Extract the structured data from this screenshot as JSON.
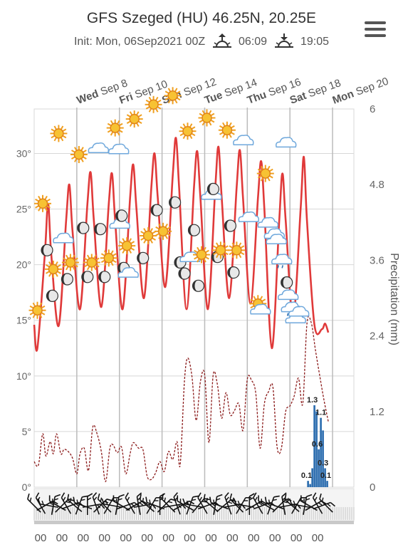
{
  "header": {
    "title": "GFS Szeged (HU) 46.25N, 20.25E",
    "init": "Init: Mon, 06Sep2021 00Z",
    "sunrise": "06:09",
    "sunset": "19:05"
  },
  "icons": {
    "menu": "hamburger-menu-icon",
    "sunrise": "sunrise-icon",
    "sunset": "sunset-icon"
  },
  "colors": {
    "temperature": "#e03a3a",
    "dewpoint": "#8b1a1a",
    "precip": "#2f6fb0",
    "grid": "#d8d8d8"
  },
  "chart_data": {
    "type": "line",
    "x_unit": "days since Mon Sep 6 00Z",
    "xlim": [
      0,
      15
    ],
    "ylim_temp": [
      0,
      34
    ],
    "ylim_precip": [
      0,
      6
    ],
    "date_labels": [
      {
        "day": "Wed",
        "date": "Sep 8",
        "t": 2
      },
      {
        "day": "Fri",
        "date": "Sep 10",
        "t": 4
      },
      {
        "day": "Sun",
        "date": "Sep 12",
        "t": 6
      },
      {
        "day": "Tue",
        "date": "Sep 14",
        "t": 8
      },
      {
        "day": "Thu",
        "date": "Sep 16",
        "t": 10
      },
      {
        "day": "Sat",
        "date": "Sep 18",
        "t": 12
      },
      {
        "day": "Mon",
        "date": "Sep 20",
        "t": 14
      }
    ],
    "temp_ticks": [
      {
        "v": 0,
        "label": "0°"
      },
      {
        "v": 5,
        "label": "5°"
      },
      {
        "v": 10,
        "label": "10°"
      },
      {
        "v": 15,
        "label": "15°"
      },
      {
        "v": 20,
        "label": "20°"
      },
      {
        "v": 25,
        "label": "25°"
      },
      {
        "v": 30,
        "label": "30°"
      }
    ],
    "precip_ticks": [
      {
        "v": 0,
        "label": "0"
      },
      {
        "v": 1.2,
        "label": "1.2"
      },
      {
        "v": 2.4,
        "label": "2.4"
      },
      {
        "v": 3.6,
        "label": "3.6"
      },
      {
        "v": 4.8,
        "label": "4.8"
      },
      {
        "v": 6,
        "label": "6"
      }
    ],
    "precip_axis_label": "Precipitation (mm)",
    "temperature": [
      [
        0,
        14.6
      ],
      [
        0.15,
        12.5
      ],
      [
        0.5,
        21
      ],
      [
        0.65,
        25.5
      ],
      [
        0.8,
        21
      ],
      [
        1.15,
        14.5
      ],
      [
        1.5,
        24
      ],
      [
        1.65,
        27.2
      ],
      [
        1.8,
        23
      ],
      [
        2.15,
        16
      ],
      [
        2.5,
        25.5
      ],
      [
        2.65,
        28.3
      ],
      [
        2.8,
        24
      ],
      [
        3.15,
        16.2
      ],
      [
        3.5,
        25.5
      ],
      [
        3.65,
        28.2
      ],
      [
        3.8,
        24
      ],
      [
        4.15,
        16
      ],
      [
        4.5,
        26
      ],
      [
        4.65,
        29
      ],
      [
        4.8,
        25
      ],
      [
        5.15,
        17
      ],
      [
        5.5,
        27
      ],
      [
        5.65,
        30
      ],
      [
        5.8,
        26
      ],
      [
        6.15,
        18
      ],
      [
        6.5,
        28
      ],
      [
        6.65,
        31.4
      ],
      [
        6.8,
        27
      ],
      [
        7.15,
        16
      ],
      [
        7.5,
        27
      ],
      [
        7.65,
        30.2
      ],
      [
        7.8,
        26
      ],
      [
        8.15,
        16
      ],
      [
        8.5,
        27
      ],
      [
        8.65,
        30.6
      ],
      [
        8.8,
        26
      ],
      [
        9.15,
        17
      ],
      [
        9.5,
        27
      ],
      [
        9.65,
        30.3
      ],
      [
        9.8,
        26
      ],
      [
        10.15,
        16.5
      ],
      [
        10.5,
        26
      ],
      [
        10.65,
        29.3
      ],
      [
        10.8,
        25
      ],
      [
        11.15,
        12.5
      ],
      [
        11.5,
        24
      ],
      [
        11.65,
        28.2
      ],
      [
        11.8,
        24
      ],
      [
        12.15,
        15.2
      ],
      [
        12.5,
        25
      ],
      [
        12.65,
        29.7
      ],
      [
        12.8,
        24
      ],
      [
        13.15,
        14.6
      ],
      [
        13.5,
        14.2
      ],
      [
        13.65,
        14.7
      ],
      [
        13.8,
        13.9
      ]
    ],
    "dewpoint": [
      [
        0,
        2.3
      ],
      [
        0.2,
        2
      ],
      [
        0.4,
        4.8
      ],
      [
        0.55,
        2.8
      ],
      [
        0.75,
        4.1
      ],
      [
        0.9,
        3
      ],
      [
        1.05,
        4.8
      ],
      [
        1.25,
        3
      ],
      [
        1.4,
        3.4
      ],
      [
        1.6,
        3.2
      ],
      [
        1.8,
        2.6
      ],
      [
        2.0,
        1.2
      ],
      [
        2.15,
        3
      ],
      [
        2.35,
        3.5
      ],
      [
        2.55,
        1.5
      ],
      [
        2.75,
        5.4
      ],
      [
        2.95,
        4.8
      ],
      [
        3.15,
        3.2
      ],
      [
        3.35,
        0.5
      ],
      [
        3.55,
        3.5
      ],
      [
        3.7,
        3.8
      ],
      [
        3.9,
        3.1
      ],
      [
        4.1,
        3.6
      ],
      [
        4.3,
        1.2
      ],
      [
        4.5,
        3
      ],
      [
        4.65,
        4
      ],
      [
        4.9,
        3.5
      ],
      [
        5.1,
        3.4
      ],
      [
        5.3,
        1
      ],
      [
        5.5,
        0.7
      ],
      [
        5.7,
        1.3
      ],
      [
        5.9,
        2.3
      ],
      [
        6.1,
        1.4
      ],
      [
        6.3,
        3.2
      ],
      [
        6.5,
        2.5
      ],
      [
        6.7,
        4.1
      ],
      [
        6.85,
        2
      ],
      [
        7.05,
        9.5
      ],
      [
        7.2,
        11.6
      ],
      [
        7.4,
        10
      ],
      [
        7.6,
        6
      ],
      [
        7.8,
        9.5
      ],
      [
        8.0,
        10.1
      ],
      [
        8.2,
        4
      ],
      [
        8.4,
        10.1
      ],
      [
        8.6,
        9.2
      ],
      [
        8.8,
        6.2
      ],
      [
        9.0,
        8.5
      ],
      [
        9.2,
        6.5
      ],
      [
        9.4,
        6.9
      ],
      [
        9.6,
        7.5
      ],
      [
        9.8,
        5.1
      ],
      [
        10.0,
        9.7
      ],
      [
        10.2,
        9.6
      ],
      [
        10.4,
        8.4
      ],
      [
        10.6,
        3.5
      ],
      [
        10.8,
        7.5
      ],
      [
        11.0,
        8.6
      ],
      [
        11.2,
        9
      ],
      [
        11.4,
        3.6
      ],
      [
        11.6,
        3.5
      ],
      [
        11.8,
        6.8
      ],
      [
        12.0,
        7.3
      ],
      [
        12.2,
        8.2
      ],
      [
        12.4,
        9.8
      ],
      [
        12.6,
        7.5
      ],
      [
        12.8,
        14.7
      ],
      [
        13.0,
        14.8
      ],
      [
        13.2,
        12.3
      ],
      [
        13.4,
        10
      ],
      [
        13.6,
        7.8
      ],
      [
        13.8,
        5.9
      ]
    ],
    "precip_bars": [
      [
        12.85,
        0.1
      ],
      [
        12.95,
        0.05
      ],
      [
        13.05,
        0.3
      ],
      [
        13.15,
        1.3
      ],
      [
        13.25,
        1.2
      ],
      [
        13.35,
        0.6
      ],
      [
        13.45,
        1.1
      ],
      [
        13.55,
        0.9
      ],
      [
        13.65,
        0.3
      ],
      [
        13.75,
        0.1
      ]
    ],
    "precip_labels": [
      {
        "t": 12.78,
        "v": 0.1,
        "label": "0.1"
      },
      {
        "t": 13.05,
        "v": 1.3,
        "label": "1.3"
      },
      {
        "t": 13.28,
        "v": 0.6,
        "label": "0.6"
      },
      {
        "t": 13.45,
        "v": 1.1,
        "label": "1.1"
      },
      {
        "t": 13.55,
        "v": 0.3,
        "label": "0.3"
      },
      {
        "t": 13.68,
        "v": 0.1,
        "label": "0.1"
      }
    ],
    "weather_icons": [
      [
        0.15,
        15.9,
        "sun-icon"
      ],
      [
        0.4,
        25.5,
        "sun-icon"
      ],
      [
        0.6,
        21.3,
        "moon-icon"
      ],
      [
        0.85,
        17.2,
        "moon-icon"
      ],
      [
        0.9,
        19.6,
        "sun-icon"
      ],
      [
        1.15,
        31.8,
        "sun-icon"
      ],
      [
        1.35,
        22.3,
        "cloud-icon"
      ],
      [
        1.55,
        18.7,
        "moon-icon"
      ],
      [
        1.7,
        20.2,
        "sun-icon"
      ],
      [
        2.1,
        29.9,
        "sun-icon"
      ],
      [
        2.3,
        23.3,
        "moon-icon"
      ],
      [
        2.5,
        18.9,
        "moon-icon"
      ],
      [
        2.7,
        20.2,
        "sun-icon"
      ],
      [
        3.0,
        30.4,
        "cloud-icon"
      ],
      [
        3.1,
        23.2,
        "moon-icon"
      ],
      [
        3.3,
        18.9,
        "moon-icon"
      ],
      [
        3.5,
        20.6,
        "sun-icon"
      ],
      [
        3.8,
        32.3,
        "sun-icon"
      ],
      [
        3.95,
        30.3,
        "cloud-icon"
      ],
      [
        4.0,
        23.6,
        "cloud-icon"
      ],
      [
        4.1,
        24.4,
        "moon-icon"
      ],
      [
        4.2,
        19.7,
        "moon-icon"
      ],
      [
        4.35,
        21.7,
        "sun-icon"
      ],
      [
        4.4,
        19.2,
        "cloud-icon"
      ],
      [
        4.7,
        33.1,
        "sun-icon"
      ],
      [
        5.1,
        20.6,
        "moon-icon"
      ],
      [
        5.35,
        22.6,
        "sun-icon"
      ],
      [
        5.6,
        34.4,
        "sun-icon"
      ],
      [
        5.75,
        24.9,
        "moon-icon"
      ],
      [
        6.05,
        23.0,
        "sun-icon"
      ],
      [
        6.5,
        35.2,
        "sun-icon"
      ],
      [
        6.6,
        25.6,
        "moon-icon"
      ],
      [
        6.85,
        20.2,
        "moon-icon"
      ],
      [
        7.05,
        19.2,
        "moon-icon"
      ],
      [
        7.2,
        32.0,
        "sun-icon"
      ],
      [
        7.3,
        20.6,
        "cloud-icon"
      ],
      [
        7.5,
        23.1,
        "moon-icon"
      ],
      [
        7.7,
        18.1,
        "moon-icon"
      ],
      [
        7.85,
        20.9,
        "sun-icon"
      ],
      [
        8.1,
        33.2,
        "sun-icon"
      ],
      [
        8.3,
        26.2,
        "cloud-icon"
      ],
      [
        8.4,
        26.8,
        "moon-icon"
      ],
      [
        8.6,
        20.7,
        "moon-icon"
      ],
      [
        8.75,
        21.3,
        "sun-icon"
      ],
      [
        9.05,
        32.1,
        "sun-icon"
      ],
      [
        9.2,
        23.5,
        "moon-icon"
      ],
      [
        9.35,
        19.3,
        "moon-icon"
      ],
      [
        9.5,
        21.3,
        "sun-icon"
      ],
      [
        9.8,
        31.1,
        "cloud-icon"
      ],
      [
        10.05,
        24.2,
        "cloud-icon"
      ],
      [
        10.5,
        16.5,
        "sun-icon"
      ],
      [
        10.6,
        15.9,
        "cloud-icon"
      ],
      [
        10.85,
        28.2,
        "sun-icon"
      ],
      [
        10.95,
        23.7,
        "cloud-icon"
      ],
      [
        11.25,
        22.7,
        "cloud-icon"
      ],
      [
        11.35,
        22.2,
        "cloud-icon"
      ],
      [
        11.6,
        20.4,
        "rain-cloud-icon"
      ],
      [
        11.8,
        30.9,
        "cloud-icon"
      ],
      [
        11.85,
        18.4,
        "moon-icon"
      ],
      [
        11.9,
        17.2,
        "cloud-icon"
      ],
      [
        12.05,
        16.1,
        "rain-cloud-icon"
      ],
      [
        12.25,
        15.1,
        "cloud-icon"
      ],
      [
        12.4,
        15.7,
        "cloud-icon"
      ]
    ],
    "wind": [
      [
        0,
        -45,
        "nw"
      ],
      [
        0.3,
        -30,
        "nw"
      ],
      [
        0.5,
        60,
        "ne"
      ],
      [
        0.7,
        -80,
        "w"
      ],
      [
        0.9,
        10,
        "n"
      ],
      [
        1.1,
        -60,
        "nw"
      ],
      [
        1.3,
        45,
        "ne"
      ],
      [
        1.5,
        -30,
        "nw"
      ],
      [
        1.7,
        70,
        "e"
      ],
      [
        1.9,
        -50,
        "nw"
      ],
      [
        2.1,
        20,
        "n"
      ],
      [
        2.3,
        -70,
        "w"
      ],
      [
        2.5,
        0,
        "n"
      ],
      [
        2.7,
        80,
        "e"
      ],
      [
        2.9,
        -20,
        "n"
      ],
      [
        3.1,
        45,
        "ne"
      ],
      [
        3.3,
        -45,
        "nw"
      ],
      [
        3.5,
        30,
        "ne"
      ],
      [
        3.7,
        -80,
        "w"
      ],
      [
        3.9,
        10,
        "n"
      ],
      [
        4.1,
        -60,
        "nw"
      ],
      [
        4.3,
        70,
        "e"
      ],
      [
        4.5,
        -30,
        "nw"
      ],
      [
        4.7,
        60,
        "ne"
      ],
      [
        4.9,
        -10,
        "n"
      ],
      [
        5.1,
        80,
        "e"
      ],
      [
        5.3,
        -50,
        "nw"
      ],
      [
        5.5,
        30,
        "ne"
      ],
      [
        5.7,
        -70,
        "w"
      ],
      [
        5.9,
        0,
        "n"
      ],
      [
        6.1,
        45,
        "ne"
      ],
      [
        6.3,
        -45,
        "nw"
      ],
      [
        6.5,
        80,
        "e"
      ],
      [
        6.7,
        -20,
        "n"
      ],
      [
        6.9,
        60,
        "ne"
      ],
      [
        7.1,
        -60,
        "nw"
      ],
      [
        7.3,
        20,
        "n"
      ],
      [
        7.5,
        -80,
        "w"
      ],
      [
        7.7,
        40,
        "ne"
      ],
      [
        7.9,
        -30,
        "nw"
      ],
      [
        8.1,
        70,
        "e"
      ],
      [
        8.3,
        -50,
        "nw"
      ],
      [
        8.5,
        10,
        "n"
      ],
      [
        8.7,
        -70,
        "w"
      ],
      [
        8.9,
        50,
        "ne"
      ],
      [
        9.1,
        -20,
        "n"
      ],
      [
        9.3,
        80,
        "e"
      ],
      [
        9.5,
        -45,
        "nw"
      ],
      [
        9.7,
        30,
        "ne"
      ],
      [
        9.9,
        -80,
        "w"
      ],
      [
        10.1,
        0,
        "n"
      ],
      [
        10.3,
        60,
        "ne"
      ],
      [
        10.5,
        -30,
        "nw"
      ],
      [
        10.7,
        70,
        "e"
      ],
      [
        10.9,
        -60,
        "nw"
      ],
      [
        11.1,
        20,
        "n"
      ],
      [
        11.3,
        -70,
        "w"
      ],
      [
        11.5,
        45,
        "ne"
      ],
      [
        11.7,
        -10,
        "n"
      ],
      [
        11.9,
        80,
        "e"
      ],
      [
        12.1,
        -50,
        "nw"
      ],
      [
        12.3,
        30,
        "ne"
      ],
      [
        12.5,
        -80,
        "w"
      ],
      [
        12.7,
        10,
        "n"
      ],
      [
        12.9,
        -60,
        "nw"
      ],
      [
        13.1,
        60,
        "ne"
      ],
      [
        13.3,
        -30,
        "nw"
      ],
      [
        13.5,
        70,
        "e"
      ],
      [
        13.7,
        -45,
        "nw"
      ]
    ],
    "bottom_ticks": [
      {
        "t": 0.3,
        "label": "00"
      },
      {
        "t": 1.3,
        "label": "00"
      },
      {
        "t": 2.3,
        "label": "00"
      },
      {
        "t": 3.3,
        "label": "00"
      },
      {
        "t": 4.3,
        "label": "00"
      },
      {
        "t": 5.3,
        "label": "00"
      },
      {
        "t": 6.3,
        "label": "00"
      },
      {
        "t": 7.3,
        "label": "00"
      },
      {
        "t": 8.3,
        "label": "00"
      },
      {
        "t": 9.3,
        "label": "00"
      },
      {
        "t": 10.3,
        "label": "00"
      },
      {
        "t": 11.3,
        "label": "00"
      },
      {
        "t": 12.3,
        "label": "00"
      },
      {
        "t": 13.3,
        "label": "00"
      }
    ]
  }
}
